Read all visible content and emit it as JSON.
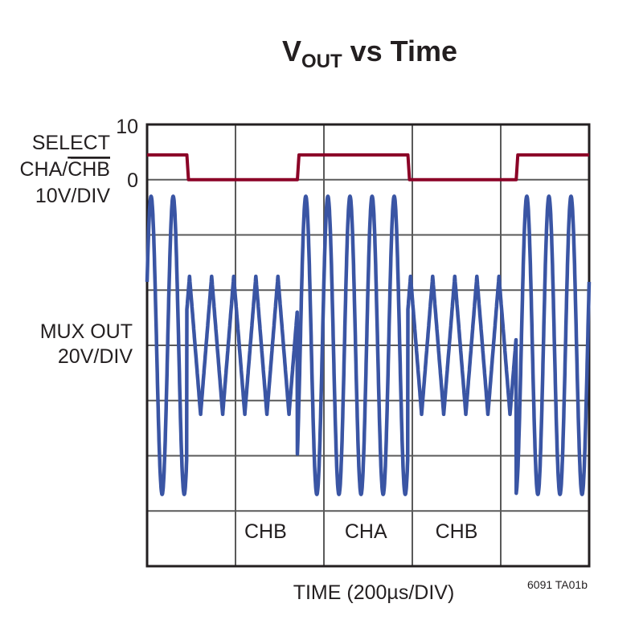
{
  "chart_data": {
    "type": "line",
    "title": {
      "main": "V",
      "subscript": "OUT",
      "rest": " vs Time"
    },
    "xlabel": "TIME (200µs/DIV)",
    "x_unit": "µs",
    "xlim": [
      0,
      1000
    ],
    "x_divisions": 5,
    "y_divisions": 8,
    "grid": true,
    "note": "6091 TA01b",
    "select_axis": {
      "label_lines": [
        "SELECT",
        "CHA/",
        "CHB",
        "10V/DIV"
      ],
      "overlined": "CHB",
      "tick_labels": [
        "10",
        "0"
      ],
      "ticks": [
        10,
        0
      ],
      "ylim": [
        -70,
        10
      ],
      "unit": "V"
    },
    "mux_axis": {
      "label_lines": [
        "MUX OUT",
        "20V/DIV"
      ],
      "ylim": [
        -80,
        80
      ],
      "unit": "V"
    },
    "channel_labels": [
      {
        "text": "CHB",
        "t": 268
      },
      {
        "text": "CHA",
        "t": 495
      },
      {
        "text": "CHB",
        "t": 700
      }
    ],
    "series": [
      {
        "id": "select",
        "color": "#8b0026",
        "high_V": 4.5,
        "low_V": 0,
        "transitions_us": [
          90,
          340,
          590,
          835
        ],
        "initial_state": "high"
      },
      {
        "id": "mux_out",
        "color": "#3a55a4",
        "cha": {
          "shape": "sine",
          "amplitude_V": 54,
          "period_us": 50,
          "first_peak_us": 9
        },
        "chb": {
          "shape": "triangle",
          "amplitude_V": 25,
          "period_us": 50,
          "first_peak_us": 96
        }
      }
    ]
  }
}
